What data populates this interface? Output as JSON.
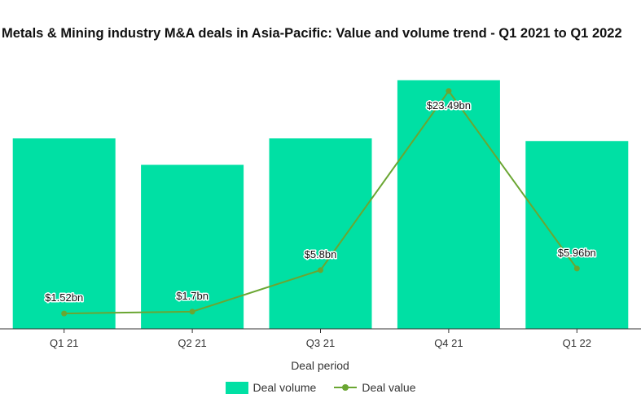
{
  "chart_data": {
    "type": "bar+line",
    "title": "Metals & Mining industry  M&A deals in Asia-Pacific: Value and volume trend - Q1 2021 to Q1 2022",
    "categories": [
      "Q1 21",
      "Q2 21",
      "Q3 21",
      "Q4 21",
      "Q1 22"
    ],
    "series": [
      {
        "name": "Deal volume",
        "type": "bar",
        "values": [
          72,
          62,
          72,
          94,
          71
        ]
      },
      {
        "name": "Deal value",
        "type": "line",
        "values": [
          1.52,
          1.7,
          5.8,
          23.49,
          5.96
        ],
        "labels": [
          "$1.52bn",
          "$1.7bn",
          "$5.8bn",
          "$23.49bn",
          "$5.96bn"
        ]
      }
    ],
    "xlabel": "Deal period",
    "ylabel": "",
    "ylim_bar": [
      0,
      100
    ],
    "ylim_line": [
      0,
      25
    ],
    "legend_position": "bottom",
    "colors": {
      "bar": "#00e0a4",
      "line": "#6aa632",
      "axis": "#333333"
    }
  }
}
